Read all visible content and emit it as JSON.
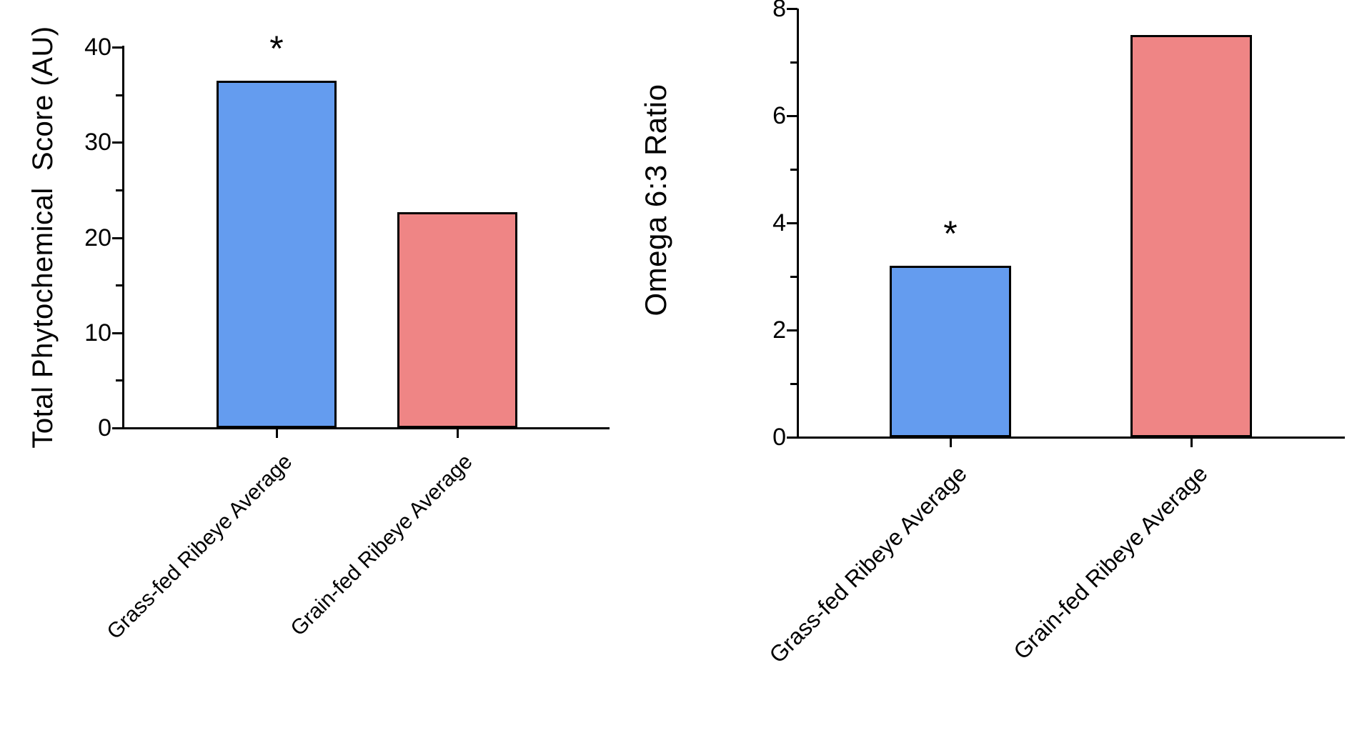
{
  "figure": {
    "background": "#FFFFFF",
    "description_colors": {
      "grass_fed_bar": "#649CEF",
      "grain_fed_bar": "#EF8585",
      "axis": "#000000",
      "text": "#000000"
    }
  },
  "chart_data": [
    {
      "type": "bar",
      "title": "",
      "xlabel": "",
      "ylabel": "Total Phytochemical  Score (AU)",
      "categories": [
        "Grass-fed Ribeye Average",
        "Grain-fed Ribeye Average"
      ],
      "values": [
        36.5,
        22.7
      ],
      "bar_colors": [
        "#649CEF",
        "#EF8585"
      ],
      "ylim": [
        0,
        40
      ],
      "yticks": [
        0,
        10,
        20,
        30,
        40
      ],
      "minor_yticks": [
        5,
        15,
        25,
        35
      ],
      "grid": false,
      "legend_position": "none",
      "annotations": [
        {
          "text": "*",
          "bar_index": 0
        }
      ]
    },
    {
      "type": "bar",
      "title": "",
      "xlabel": "",
      "ylabel": "Omega 6:3 Ratio",
      "categories": [
        "Grass-fed Ribeye Average",
        "Grain-fed Ribeye Average"
      ],
      "values": [
        3.2,
        7.5
      ],
      "bar_colors": [
        "#649CEF",
        "#EF8585"
      ],
      "ylim": [
        0,
        8
      ],
      "yticks": [
        0,
        2,
        4,
        6,
        8
      ],
      "minor_yticks": [
        1,
        3,
        5,
        7
      ],
      "grid": false,
      "legend_position": "none",
      "annotations": [
        {
          "text": "*",
          "bar_index": 0
        }
      ]
    }
  ]
}
